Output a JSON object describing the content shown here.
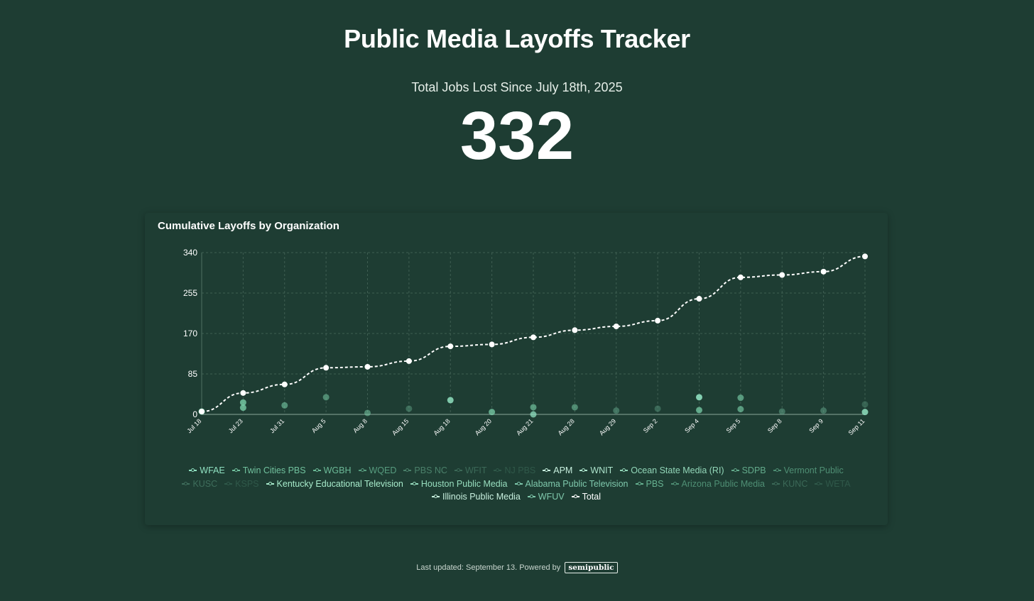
{
  "header": {
    "title": "Public Media Layoffs Tracker",
    "stat_label": "Total Jobs Lost Since July 18th, 2025",
    "stat_value": "332"
  },
  "footer": {
    "text": "Last updated: September 13. Powered by",
    "brand": "semipublic"
  },
  "colors": {
    "background": "#1e3d33",
    "accent": "#7fd8b0",
    "total_line": "#ffffff"
  },
  "chart_data": {
    "type": "line",
    "title": "Cumulative Layoffs by Organization",
    "x": [
      "Jul 18",
      "Jul 23",
      "Jul 31",
      "Aug 5",
      "Aug 8",
      "Aug 15",
      "Aug 18",
      "Aug 20",
      "Aug 21",
      "Aug 28",
      "Aug 29",
      "Sep 2",
      "Sep 4",
      "Sep 5",
      "Sep 8",
      "Sep 9",
      "Sep 11"
    ],
    "yticks": [
      0,
      85,
      170,
      255,
      340
    ],
    "ylim": [
      0,
      340
    ],
    "grid": true,
    "legend_position": "bottom",
    "series": [
      {
        "name": "WFAE",
        "color": "#8fe0c0",
        "opacity": 1
      },
      {
        "name": "Twin Cities PBS",
        "color": "#7fd8b0",
        "opacity": 0.85
      },
      {
        "name": "WGBH",
        "color": "#7fd8b0",
        "opacity": 0.8
      },
      {
        "name": "WQED",
        "color": "#6fc49f",
        "opacity": 0.7
      },
      {
        "name": "PBS NC",
        "color": "#6fb898",
        "opacity": 0.55
      },
      {
        "name": "WFIT",
        "color": "#5e9e83",
        "opacity": 0.45
      },
      {
        "name": "NJ PBS",
        "color": "#4f8a72",
        "opacity": 0.35
      },
      {
        "name": "APM",
        "color": "#c8f0df",
        "opacity": 1
      },
      {
        "name": "WNIT",
        "color": "#b4ecd4",
        "opacity": 0.95
      },
      {
        "name": "Ocean State Media (RI)",
        "color": "#9ee6c6",
        "opacity": 0.9
      },
      {
        "name": "SDPB",
        "color": "#7fd8b0",
        "opacity": 0.7
      },
      {
        "name": "Vermont Public",
        "color": "#6fc49f",
        "opacity": 0.6
      },
      {
        "name": "KUSC",
        "color": "#5e9e83",
        "opacity": 0.5
      },
      {
        "name": "KSPS",
        "color": "#4f8a72",
        "opacity": 0.35
      },
      {
        "name": "Kentucky Educational Television",
        "color": "#a8eccc",
        "opacity": 1
      },
      {
        "name": "Houston Public Media",
        "color": "#9ee6c6",
        "opacity": 0.95
      },
      {
        "name": "Alabama Public Television",
        "color": "#8fe0c0",
        "opacity": 0.85
      },
      {
        "name": "PBS",
        "color": "#7fd8b0",
        "opacity": 0.75
      },
      {
        "name": "Arizona Public Media",
        "color": "#6fc49f",
        "opacity": 0.6
      },
      {
        "name": "KUNC",
        "color": "#5e9e83",
        "opacity": 0.45
      },
      {
        "name": "WETA",
        "color": "#4f8a72",
        "opacity": 0.35
      },
      {
        "name": "Illinois Public Media",
        "color": "#c8f0df",
        "opacity": 1
      },
      {
        "name": "WFUV",
        "color": "#8fe0c0",
        "opacity": 0.85
      },
      {
        "name": "Total",
        "color": "#ffffff",
        "opacity": 1
      }
    ],
    "total_values": [
      6,
      45,
      63,
      98,
      100,
      112,
      143,
      147,
      162,
      177,
      185,
      197,
      243,
      288,
      293,
      300,
      332
    ],
    "points": [
      {
        "x": "Jul 18",
        "y": 6,
        "color": "#7fd8b0",
        "opacity": 0.9
      },
      {
        "x": "Jul 23",
        "y": 25,
        "color": "#7fd8b0",
        "opacity": 0.75
      },
      {
        "x": "Jul 23",
        "y": 14,
        "color": "#7fd8b0",
        "opacity": 0.75
      },
      {
        "x": "Jul 31",
        "y": 19,
        "color": "#7fd8b0",
        "opacity": 0.55
      },
      {
        "x": "Aug 5",
        "y": 36,
        "color": "#7fd8b0",
        "opacity": 0.5
      },
      {
        "x": "Aug 8",
        "y": 3,
        "color": "#7fd8b0",
        "opacity": 0.5
      },
      {
        "x": "Aug 15",
        "y": 12,
        "color": "#6fb898",
        "opacity": 0.4
      },
      {
        "x": "Aug 18",
        "y": 30,
        "color": "#8fe0c0",
        "opacity": 0.85
      },
      {
        "x": "Aug 20",
        "y": 5,
        "color": "#7fd8b0",
        "opacity": 0.7
      },
      {
        "x": "Aug 21",
        "y": 15,
        "color": "#7fd8b0",
        "opacity": 0.6
      },
      {
        "x": "Aug 21",
        "y": 0,
        "color": "#8fe0c0",
        "opacity": 0.75
      },
      {
        "x": "Aug 28",
        "y": 15,
        "color": "#7fd8b0",
        "opacity": 0.5
      },
      {
        "x": "Aug 29",
        "y": 8,
        "color": "#6fb898",
        "opacity": 0.45
      },
      {
        "x": "Sep 2",
        "y": 12,
        "color": "#5e9e83",
        "opacity": 0.45
      },
      {
        "x": "Sep 4",
        "y": 36,
        "color": "#8fe0c0",
        "opacity": 0.9
      },
      {
        "x": "Sep 4",
        "y": 9,
        "color": "#7fd8b0",
        "opacity": 0.7
      },
      {
        "x": "Sep 5",
        "y": 35,
        "color": "#7fd8b0",
        "opacity": 0.6
      },
      {
        "x": "Sep 5",
        "y": 11,
        "color": "#7fd8b0",
        "opacity": 0.6
      },
      {
        "x": "Sep 8",
        "y": 6,
        "color": "#6fb898",
        "opacity": 0.45
      },
      {
        "x": "Sep 9",
        "y": 8,
        "color": "#6fb898",
        "opacity": 0.45
      },
      {
        "x": "Sep 11",
        "y": 21,
        "color": "#4f8a72",
        "opacity": 0.5
      },
      {
        "x": "Sep 11",
        "y": 5,
        "color": "#8fe0c0",
        "opacity": 0.85
      }
    ]
  }
}
